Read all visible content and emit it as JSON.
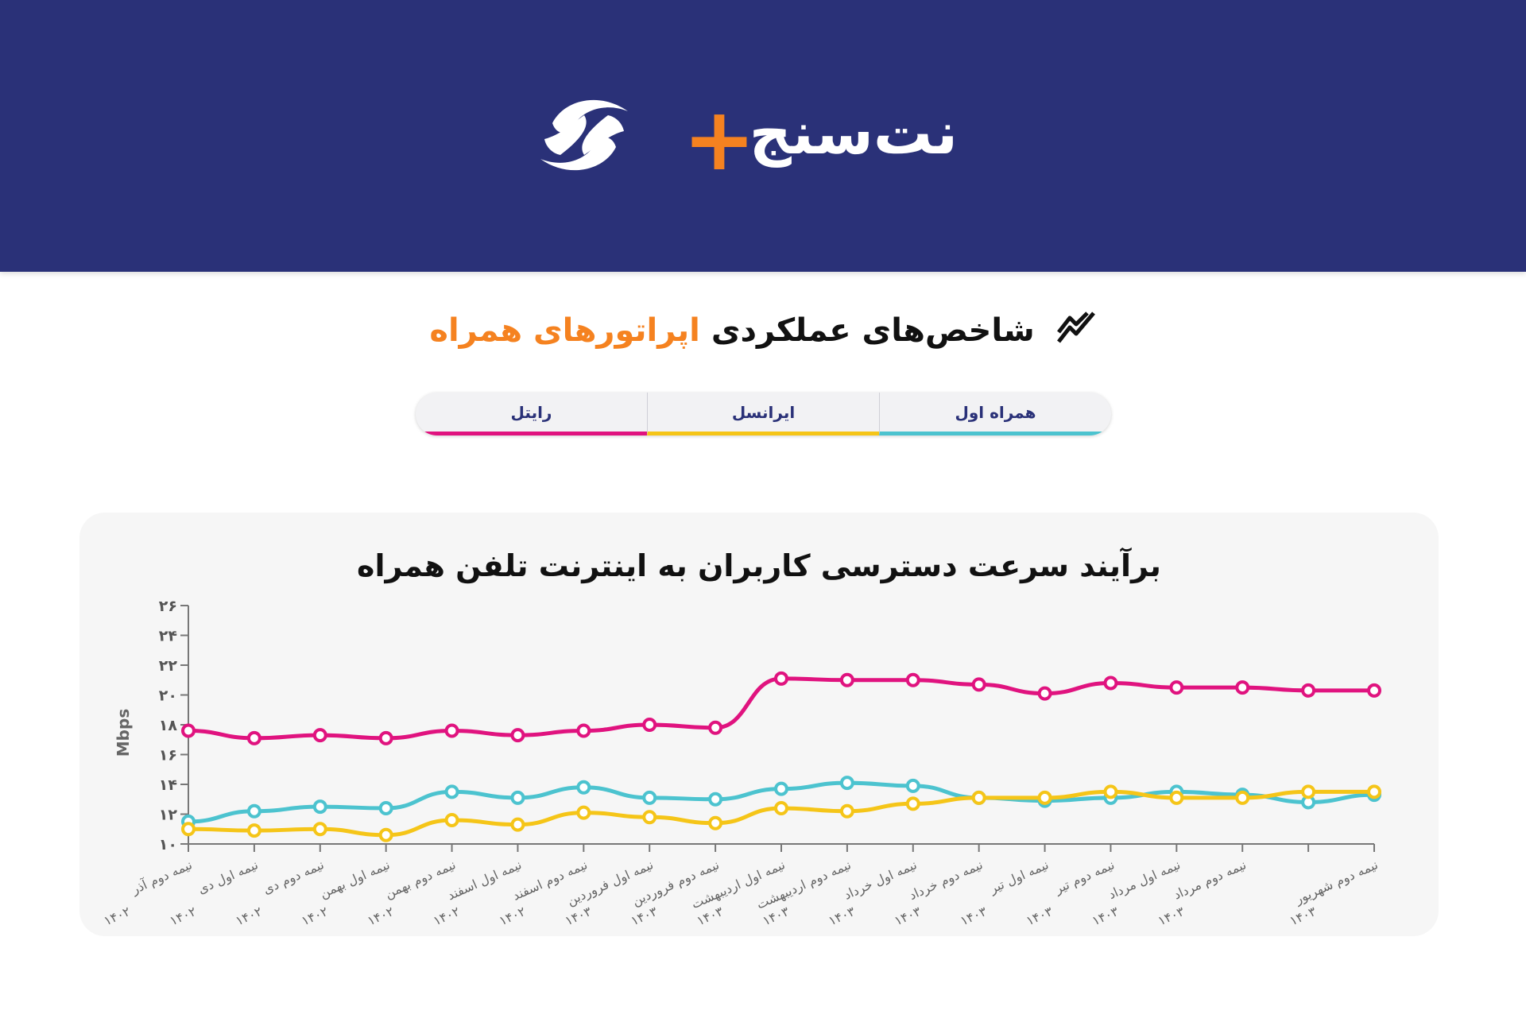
{
  "header": {
    "logo_text": "نت‌سنج",
    "logo_plus": "+",
    "background": "#2a3178"
  },
  "page_title": {
    "part1": "شاخص‌های عملکردی",
    "part2": "اپراتورهای همراه",
    "icon": "trend-chart-icon",
    "accent_color": "#f58220"
  },
  "tabs": [
    {
      "label": "همراه اول",
      "color": "#4cc3cf"
    },
    {
      "label": "ایرانسل",
      "color": "#f5c518"
    },
    {
      "label": "رایتل",
      "color": "#e0137f"
    }
  ],
  "chart_data": {
    "type": "line",
    "title": "برآیند سرعت دسترسی کاربران به اینترنت تلفن همراه",
    "ylabel": "Mbps",
    "xlabel": "",
    "ylim": [
      10,
      26
    ],
    "yticks": [
      "۱۰",
      "۱۲",
      "۱۴",
      "۱۶",
      "۱۸",
      "۲۰",
      "۲۲",
      "۲۴",
      "۲۶"
    ],
    "grid": false,
    "legend": "none",
    "categories": [
      "نیمه دوم آذر ۱۴۰۲",
      "نیمه اول دی ۱۴۰۲",
      "نیمه دوم دی ۱۴۰۲",
      "نیمه اول بهمن ۱۴۰۲",
      "نیمه دوم بهمن ۱۴۰۲",
      "نیمه اول اسفند ۱۴۰۲",
      "نیمه دوم اسفند ۱۴۰۲",
      "نیمه اول فروردین ۱۴۰۳",
      "نیمه دوم فروردین ۱۴۰۳",
      "نیمه اول اردیبهشت ۱۴۰۳",
      "نیمه دوم اردیبهشت ۱۴۰۳",
      "نیمه اول خرداد ۱۴۰۳",
      "نیمه دوم خرداد ۱۴۰۳",
      "نیمه اول تیر ۱۴۰۳",
      "نیمه دوم تیر ۱۴۰۳",
      "نیمه اول مرداد ۱۴۰۳",
      "نیمه دوم مرداد ۱۴۰۳",
      "",
      "نیمه دوم شهریور ۱۴۰۳"
    ],
    "series": [
      {
        "color": "#e0137f",
        "values": [
          17.6,
          17.1,
          17.3,
          17.1,
          17.6,
          17.3,
          17.6,
          18.0,
          17.8,
          21.1,
          21.0,
          21.0,
          20.7,
          20.1,
          20.8,
          20.5,
          20.5,
          20.3,
          20.3
        ]
      },
      {
        "color": "#4cc3cf",
        "values": [
          11.5,
          12.2,
          12.5,
          12.4,
          13.5,
          13.1,
          13.8,
          13.1,
          13.0,
          13.7,
          14.1,
          13.9,
          13.1,
          12.9,
          13.1,
          13.5,
          13.3,
          12.8,
          13.3
        ]
      },
      {
        "color": "#f5c518",
        "values": [
          11.0,
          10.9,
          11.0,
          10.6,
          11.6,
          11.3,
          12.1,
          11.8,
          11.4,
          12.4,
          12.2,
          12.7,
          13.1,
          13.1,
          13.5,
          13.1,
          13.1,
          13.5,
          13.5
        ]
      }
    ]
  }
}
